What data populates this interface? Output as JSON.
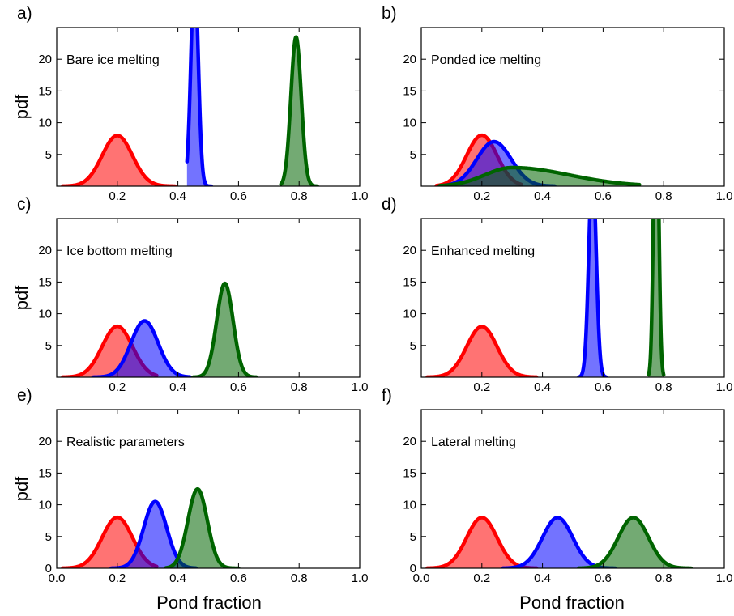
{
  "figure": {
    "ylabel": "pdf",
    "xlabel": "Pond fraction"
  },
  "chart_data": [
    {
      "type": "area",
      "panel": "a)",
      "title": "Bare ice melting",
      "xlim": [
        0.0,
        1.0
      ],
      "ylim": [
        0,
        25
      ],
      "xticks": [
        "0.2",
        "0.4",
        "0.6",
        "0.8",
        "1.0"
      ],
      "xtick_values": [
        0.2,
        0.4,
        0.6,
        0.8,
        1.0
      ],
      "yticks": [
        "5",
        "10",
        "15",
        "20"
      ],
      "ytick_values": [
        5,
        10,
        15,
        20
      ],
      "show_x_ticklabels": true,
      "show_ylabel": true,
      "series": [
        {
          "color": "#ff0000",
          "mean": 0.2,
          "sd": 0.05,
          "xmin": 0.02,
          "xmax": 0.39
        },
        {
          "color": "#0000ff",
          "mean": 0.455,
          "sd": 0.012,
          "xmin": 0.43,
          "xmax": 0.51
        },
        {
          "color": "#006400",
          "mean": 0.79,
          "sd": 0.017,
          "xmin": 0.74,
          "xmax": 0.86
        }
      ]
    },
    {
      "type": "area",
      "panel": "b)",
      "title": "Ponded ice melting",
      "xlim": [
        0.0,
        1.0
      ],
      "ylim": [
        0,
        25
      ],
      "xticks": [
        "0.2",
        "0.4",
        "0.6",
        "0.8",
        "1.0"
      ],
      "xtick_values": [
        0.2,
        0.4,
        0.6,
        0.8,
        1.0
      ],
      "yticks": [
        "5",
        "10",
        "15",
        "20"
      ],
      "ytick_values": [
        5,
        10,
        15,
        20
      ],
      "show_x_ticklabels": true,
      "show_ylabel": false,
      "series": [
        {
          "color": "#ff0000",
          "mean": 0.2,
          "sd": 0.05,
          "xmin": 0.05,
          "xmax": 0.33
        },
        {
          "color": "#0000ff",
          "mean": 0.24,
          "sd": 0.057,
          "xmin": 0.07,
          "xmax": 0.44
        },
        {
          "color": "#006400",
          "mean": 0.3,
          "sd": 0.09,
          "skew": 0.18,
          "xmin": 0.06,
          "xmax": 0.72
        }
      ]
    },
    {
      "type": "area",
      "panel": "c)",
      "title": "Ice bottom melting",
      "xlim": [
        0.0,
        1.0
      ],
      "ylim": [
        0,
        25
      ],
      "xticks": [
        "0.2",
        "0.4",
        "0.6",
        "0.8",
        "1.0"
      ],
      "xtick_values": [
        0.2,
        0.4,
        0.6,
        0.8,
        1.0
      ],
      "yticks": [
        "5",
        "10",
        "15",
        "20"
      ],
      "ytick_values": [
        5,
        10,
        15,
        20
      ],
      "show_x_ticklabels": true,
      "show_ylabel": true,
      "series": [
        {
          "color": "#ff0000",
          "mean": 0.2,
          "sd": 0.05,
          "xmin": 0.02,
          "xmax": 0.33
        },
        {
          "color": "#0000ff",
          "mean": 0.29,
          "sd": 0.045,
          "xmin": 0.12,
          "xmax": 0.44
        },
        {
          "color": "#006400",
          "mean": 0.555,
          "sd": 0.027,
          "xmin": 0.45,
          "xmax": 0.66
        }
      ]
    },
    {
      "type": "area",
      "panel": "d)",
      "title": "Enhanced melting",
      "xlim": [
        0.0,
        1.0
      ],
      "ylim": [
        0,
        25
      ],
      "xticks": [
        "0.2",
        "0.4",
        "0.6",
        "0.8",
        "1.0"
      ],
      "xtick_values": [
        0.2,
        0.4,
        0.6,
        0.8,
        1.0
      ],
      "yticks": [
        "5",
        "10",
        "15",
        "20"
      ],
      "ytick_values": [
        5,
        10,
        15,
        20
      ],
      "show_x_ticklabels": true,
      "show_ylabel": false,
      "series": [
        {
          "color": "#ff0000",
          "mean": 0.2,
          "sd": 0.05,
          "xmin": 0.02,
          "xmax": 0.38
        },
        {
          "color": "#0000ff",
          "mean": 0.565,
          "sd": 0.012,
          "xmin": 0.52,
          "xmax": 0.61
        },
        {
          "color": "#006400",
          "mean": 0.775,
          "sd": 0.008,
          "xmin": 0.75,
          "xmax": 0.8
        }
      ]
    },
    {
      "type": "area",
      "panel": "e)",
      "title": "Realistic parameters",
      "xlim": [
        0.0,
        1.0
      ],
      "ylim": [
        0,
        25
      ],
      "xticks": [
        "0.0",
        "0.2",
        "0.4",
        "0.6",
        "0.8",
        "1.0"
      ],
      "xtick_values": [
        0.0,
        0.2,
        0.4,
        0.6,
        0.8,
        1.0
      ],
      "yticks": [
        "0",
        "5",
        "10",
        "15",
        "20"
      ],
      "ytick_values": [
        0,
        5,
        10,
        15,
        20
      ],
      "show_x_ticklabels": true,
      "show_ylabel": true,
      "series": [
        {
          "color": "#ff0000",
          "mean": 0.2,
          "sd": 0.05,
          "xmin": 0.02,
          "xmax": 0.33
        },
        {
          "color": "#0000ff",
          "mean": 0.325,
          "sd": 0.038,
          "xmin": 0.18,
          "xmax": 0.46
        },
        {
          "color": "#006400",
          "mean": 0.465,
          "sd": 0.032,
          "xmin": 0.36,
          "xmax": 0.6
        }
      ]
    },
    {
      "type": "area",
      "panel": "f)",
      "title": "Lateral melting",
      "xlim": [
        0.0,
        1.0
      ],
      "ylim": [
        0,
        25
      ],
      "xticks": [
        "0.0",
        "0.2",
        "0.4",
        "0.6",
        "0.8",
        "1.0"
      ],
      "xtick_values": [
        0.0,
        0.2,
        0.4,
        0.6,
        0.8,
        1.0
      ],
      "yticks": [
        "0",
        "5",
        "10",
        "15",
        "20"
      ],
      "ytick_values": [
        0,
        5,
        10,
        15,
        20
      ],
      "show_x_ticklabels": true,
      "show_ylabel": false,
      "series": [
        {
          "color": "#ff0000",
          "mean": 0.2,
          "sd": 0.05,
          "xmin": 0.02,
          "xmax": 0.38
        },
        {
          "color": "#0000ff",
          "mean": 0.45,
          "sd": 0.05,
          "xmin": 0.27,
          "xmax": 0.64
        },
        {
          "color": "#006400",
          "mean": 0.7,
          "sd": 0.05,
          "xmin": 0.52,
          "xmax": 0.89
        }
      ]
    }
  ]
}
